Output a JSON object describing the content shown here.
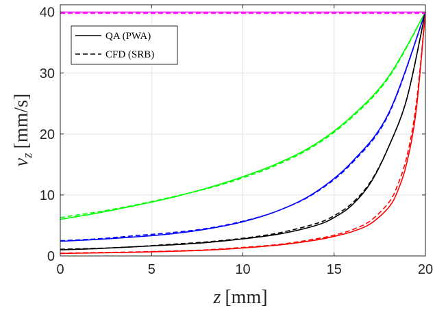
{
  "chart_data": {
    "type": "line",
    "title": "",
    "xlabel": {
      "var": "z",
      "unit": "[mm]"
    },
    "ylabel": {
      "var": "v",
      "sub": "z",
      "unit": "[mm/s]"
    },
    "xlim": [
      0,
      20
    ],
    "ylim": [
      0,
      41.2
    ],
    "xticks": [
      0,
      5,
      10,
      15,
      20
    ],
    "yticks": [
      0,
      10,
      20,
      30,
      40
    ],
    "grid": true,
    "legend": {
      "position": "top-left",
      "entries": [
        {
          "label": "QA (PWA)",
          "style": "solid"
        },
        {
          "label": "CFD (SRB)",
          "style": "dashed"
        }
      ]
    },
    "series": [
      {
        "color": "#00ff00",
        "style": "solid",
        "x": [
          0,
          2,
          4,
          6,
          8,
          10,
          12,
          14,
          16,
          18,
          20
        ],
        "y": [
          6.0,
          7.0,
          8.2,
          9.5,
          11.1,
          13.0,
          15.3,
          18.4,
          23.0,
          29.5,
          40.0
        ]
      },
      {
        "color": "#00ff00",
        "style": "dashed",
        "x": [
          0,
          2,
          4,
          6,
          8,
          10,
          12,
          14,
          16,
          18,
          20
        ],
        "y": [
          6.3,
          7.2,
          8.3,
          9.6,
          11.0,
          12.8,
          15.1,
          18.2,
          22.8,
          29.3,
          40.0
        ]
      },
      {
        "color": "#0000ff",
        "style": "solid",
        "x": [
          0,
          2,
          4,
          6,
          8,
          10,
          12,
          14,
          16,
          18,
          20
        ],
        "y": [
          2.4,
          2.7,
          3.1,
          3.6,
          4.4,
          5.6,
          7.5,
          10.5,
          15.5,
          23.5,
          40.0
        ]
      },
      {
        "color": "#0000ff",
        "style": "dashed",
        "x": [
          0,
          2,
          4,
          6,
          8,
          10,
          12,
          14,
          16,
          18,
          20
        ],
        "y": [
          2.5,
          2.8,
          3.3,
          3.8,
          4.5,
          5.7,
          7.5,
          10.4,
          15.3,
          23.3,
          40.0
        ]
      },
      {
        "color": "#000000",
        "style": "solid",
        "x": [
          0,
          2,
          4,
          6,
          8,
          10,
          12,
          14,
          15,
          16,
          17,
          18,
          19,
          20
        ],
        "y": [
          1.0,
          1.2,
          1.5,
          1.8,
          2.2,
          2.8,
          3.6,
          5.0,
          6.3,
          8.4,
          12.0,
          18.0,
          26.0,
          40.0
        ]
      },
      {
        "color": "#000000",
        "style": "dashed",
        "x": [
          0,
          2,
          4,
          6,
          8,
          10,
          12,
          14,
          15,
          16,
          17,
          18,
          19,
          20
        ],
        "y": [
          1.1,
          1.25,
          1.5,
          1.9,
          2.3,
          2.9,
          3.8,
          5.3,
          6.6,
          8.7,
          12.2,
          18.0,
          26.0,
          40.0
        ]
      },
      {
        "color": "#ff0000",
        "style": "solid",
        "x": [
          0,
          2,
          4,
          6,
          8,
          10,
          12,
          14,
          15,
          16,
          17,
          18,
          18.5,
          19,
          19.5,
          20
        ],
        "y": [
          0.4,
          0.5,
          0.6,
          0.75,
          0.95,
          1.3,
          1.8,
          2.6,
          3.2,
          4.0,
          5.3,
          8.0,
          10.8,
          15.5,
          24.0,
          40.0
        ]
      },
      {
        "color": "#ff0000",
        "style": "dashed",
        "x": [
          0,
          2,
          4,
          6,
          8,
          10,
          12,
          14,
          15,
          16,
          17,
          18,
          18.5,
          19,
          19.5,
          20
        ],
        "y": [
          0.45,
          0.55,
          0.65,
          0.8,
          1.0,
          1.4,
          1.9,
          2.8,
          3.4,
          4.3,
          5.8,
          8.8,
          11.8,
          16.5,
          25.0,
          40.0
        ]
      },
      {
        "color": "#ff00ff",
        "style": "solid",
        "x": [
          0,
          20
        ],
        "y": [
          40.0,
          40.0
        ]
      },
      {
        "color": "#ff00ff",
        "style": "dashed",
        "x": [
          0,
          20
        ],
        "y": [
          39.8,
          39.8
        ]
      }
    ]
  }
}
